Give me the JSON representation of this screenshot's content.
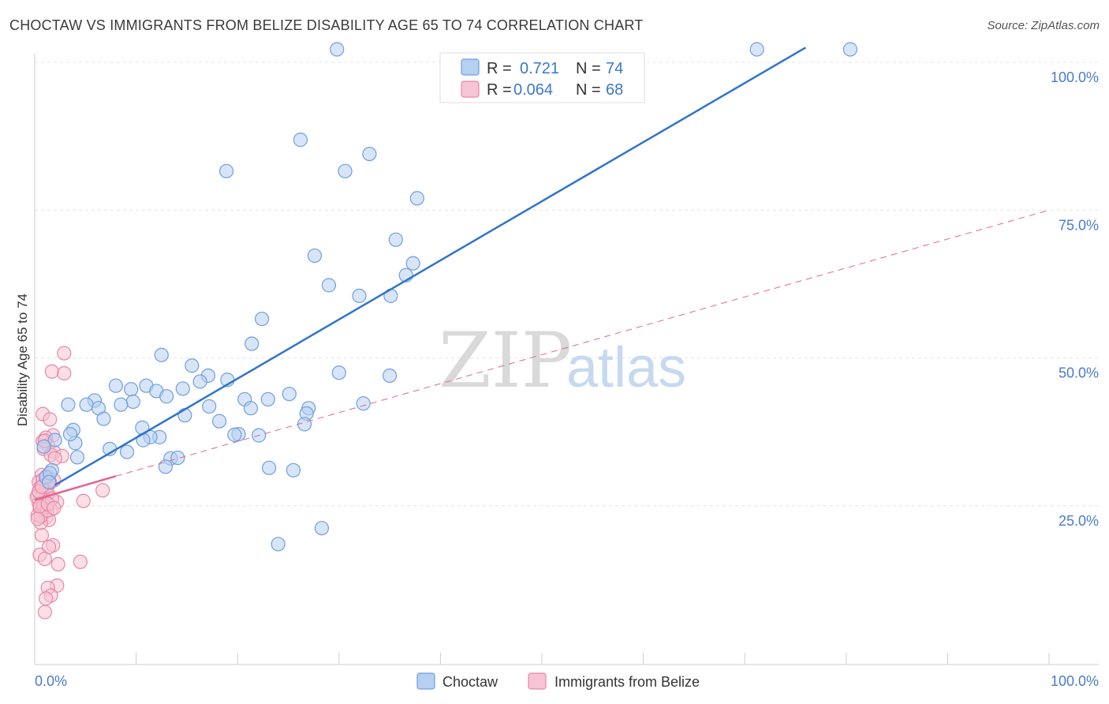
{
  "title": "CHOCTAW VS IMMIGRANTS FROM BELIZE DISABILITY AGE 65 TO 74 CORRELATION CHART",
  "source": "Source: ZipAtlas.com",
  "watermark": {
    "zip": "ZIP",
    "atlas": "atlas"
  },
  "chart_data": {
    "type": "scatter",
    "ylabel": "Disability Age 65 to 74",
    "xlabel": "",
    "xlim": [
      0,
      100
    ],
    "ylim": [
      0,
      100
    ],
    "x_tick_labels": {
      "left": "0.0%",
      "right": "100.0%"
    },
    "y_ticks": [
      {
        "value": 25,
        "label": "25.0%"
      },
      {
        "value": 50,
        "label": "50.0%"
      },
      {
        "value": 75,
        "label": "75.0%"
      },
      {
        "value": 100,
        "label": "100.0%"
      }
    ],
    "legend": {
      "r_label": "R =",
      "n_label": "N =",
      "entries": [
        {
          "name": "Choctaw",
          "r": "0.721",
          "n": "74"
        },
        {
          "name": "Immigrants from Belize",
          "r": "0.064",
          "n": "68"
        }
      ]
    },
    "colors": {
      "choctaw": "#6f9fe0",
      "choctaw_fill": "#b7cff0",
      "choctaw_line": "#2f74cc",
      "belize": "#e987a6",
      "belize_fill": "#f6c4d4",
      "belize_line": "#e2678f"
    },
    "series": [
      {
        "name": "Choctaw",
        "trend": {
          "x0": 2,
          "y0": 28.5,
          "x1": 76,
          "y1": 102.5
        },
        "points": [
          [
            29.8,
            102.2
          ],
          [
            71.2,
            102.2
          ],
          [
            80.4,
            102.2
          ],
          [
            26.2,
            86.9
          ],
          [
            33.0,
            84.5
          ],
          [
            18.9,
            81.6
          ],
          [
            30.6,
            81.6
          ],
          [
            37.7,
            77.0
          ],
          [
            35.6,
            70.0
          ],
          [
            27.6,
            67.3
          ],
          [
            37.3,
            66.0
          ],
          [
            36.6,
            64.0
          ],
          [
            29.0,
            62.3
          ],
          [
            35.1,
            60.5
          ],
          [
            32.0,
            60.5
          ],
          [
            22.4,
            56.6
          ],
          [
            21.4,
            52.4
          ],
          [
            12.5,
            50.5
          ],
          [
            15.5,
            48.7
          ],
          [
            30.0,
            47.5
          ],
          [
            17.1,
            47.0
          ],
          [
            35.0,
            47.0
          ],
          [
            16.3,
            46.0
          ],
          [
            8.0,
            45.3
          ],
          [
            11.0,
            45.3
          ],
          [
            9.5,
            44.7
          ],
          [
            12.0,
            44.4
          ],
          [
            25.1,
            43.9
          ],
          [
            13.0,
            43.5
          ],
          [
            20.7,
            43.0
          ],
          [
            23.0,
            43.0
          ],
          [
            5.9,
            42.8
          ],
          [
            9.7,
            42.6
          ],
          [
            32.4,
            42.3
          ],
          [
            3.3,
            42.1
          ],
          [
            5.1,
            42.1
          ],
          [
            8.5,
            42.1
          ],
          [
            17.2,
            41.8
          ],
          [
            6.3,
            41.5
          ],
          [
            21.3,
            41.5
          ],
          [
            27.0,
            41.5
          ],
          [
            26.8,
            40.6
          ],
          [
            14.8,
            40.3
          ],
          [
            6.8,
            39.7
          ],
          [
            18.2,
            39.3
          ],
          [
            26.6,
            38.8
          ],
          [
            10.6,
            38.2
          ],
          [
            3.8,
            37.8
          ],
          [
            20.1,
            37.1
          ],
          [
            22.1,
            36.9
          ],
          [
            19.7,
            37.0
          ],
          [
            12.3,
            36.6
          ],
          [
            11.4,
            36.6
          ],
          [
            2.0,
            36.1
          ],
          [
            4.0,
            35.6
          ],
          [
            7.4,
            34.6
          ],
          [
            9.1,
            34.1
          ],
          [
            4.2,
            33.2
          ],
          [
            13.4,
            33.0
          ],
          [
            14.1,
            33.1
          ],
          [
            1.7,
            31.0
          ],
          [
            12.9,
            31.6
          ],
          [
            23.1,
            31.4
          ],
          [
            25.5,
            31.0
          ],
          [
            1.1,
            29.8
          ],
          [
            28.3,
            21.2
          ],
          [
            24.0,
            18.5
          ],
          [
            0.9,
            35.0
          ],
          [
            1.5,
            30.5
          ],
          [
            1.4,
            29.0
          ],
          [
            10.7,
            36.1
          ],
          [
            3.5,
            37.1
          ],
          [
            19.0,
            46.3
          ],
          [
            14.6,
            44.8
          ]
        ]
      },
      {
        "name": "Immigrants from Belize",
        "trend": {
          "x0": 0,
          "y0": 26.0,
          "x1": 8,
          "y1": 30.0
        },
        "dashed_trend": {
          "x0": 8,
          "y0": 30.0,
          "x1": 100,
          "y1": 75.0
        },
        "points": [
          [
            2.9,
            50.8
          ],
          [
            1.7,
            47.7
          ],
          [
            2.9,
            47.4
          ],
          [
            0.8,
            40.5
          ],
          [
            1.5,
            39.6
          ],
          [
            1.8,
            36.9
          ],
          [
            1.1,
            36.5
          ],
          [
            0.8,
            35.9
          ],
          [
            1.3,
            35.2
          ],
          [
            0.9,
            34.6
          ],
          [
            1.9,
            34.1
          ],
          [
            1.6,
            33.6
          ],
          [
            2.7,
            33.4
          ],
          [
            0.7,
            30.2
          ],
          [
            1.4,
            29.8
          ],
          [
            1.9,
            29.3
          ],
          [
            0.4,
            29.0
          ],
          [
            1.0,
            28.7
          ],
          [
            1.3,
            28.4
          ],
          [
            0.5,
            28.0
          ],
          [
            0.7,
            27.7
          ],
          [
            1.1,
            27.3
          ],
          [
            1.3,
            27.0
          ],
          [
            0.3,
            26.8
          ],
          [
            6.7,
            27.6
          ],
          [
            0.6,
            26.3
          ],
          [
            1.0,
            26.0
          ],
          [
            2.2,
            25.6
          ],
          [
            4.8,
            25.8
          ],
          [
            0.4,
            25.4
          ],
          [
            0.8,
            25.1
          ],
          [
            1.2,
            24.8
          ],
          [
            0.5,
            24.5
          ],
          [
            1.6,
            24.3
          ],
          [
            0.6,
            24.0
          ],
          [
            0.9,
            23.7
          ],
          [
            0.3,
            23.4
          ],
          [
            1.1,
            23.0
          ],
          [
            1.4,
            22.6
          ],
          [
            0.6,
            22.1
          ],
          [
            0.7,
            20.0
          ],
          [
            1.8,
            18.3
          ],
          [
            1.4,
            18.0
          ],
          [
            0.5,
            16.7
          ],
          [
            1.0,
            16.0
          ],
          [
            4.5,
            15.5
          ],
          [
            2.3,
            15.1
          ],
          [
            2.2,
            11.5
          ],
          [
            1.3,
            11.1
          ],
          [
            1.6,
            9.8
          ],
          [
            1.1,
            9.3
          ],
          [
            1.0,
            7.0
          ],
          [
            0.8,
            29.4
          ],
          [
            1.2,
            30.0
          ],
          [
            0.2,
            26.5
          ],
          [
            0.4,
            27.4
          ],
          [
            1.5,
            28.9
          ],
          [
            0.9,
            25.0
          ],
          [
            1.7,
            26.2
          ],
          [
            0.6,
            23.2
          ],
          [
            1.2,
            24.2
          ],
          [
            0.3,
            22.8
          ],
          [
            2.0,
            33.0
          ],
          [
            1.0,
            36.0
          ],
          [
            0.5,
            24.9
          ],
          [
            1.3,
            25.3
          ],
          [
            0.7,
            28.2
          ],
          [
            1.9,
            24.6
          ]
        ]
      }
    ]
  }
}
